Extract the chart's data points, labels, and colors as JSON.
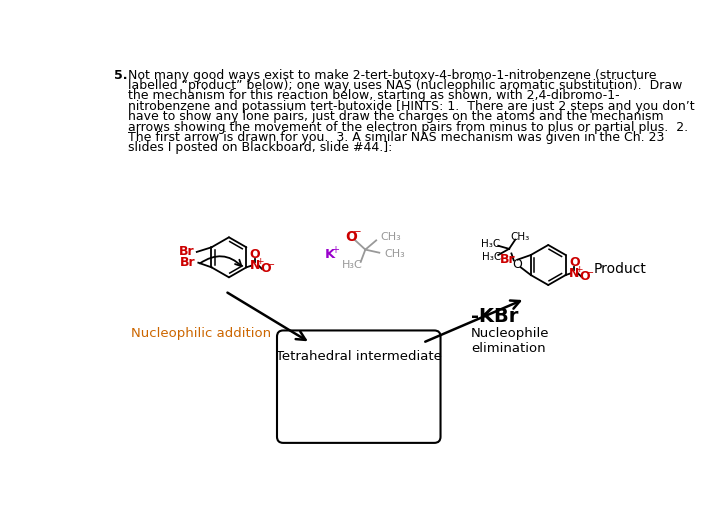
{
  "problem_text_lines": [
    "Not many good ways exist to make 2-tert-butoxy-4-bromo-1-nitrobenzene (structure",
    "labelled “product” below); one way uses NAS (nucleophilic aromatic substitution).  Draw",
    "the mechanism for this reaction below, starting as shown, with 2,4-dibromo-1-",
    "nitrobenzene and potassium tert-butoxide [HINTS: 1.  There are just 2 steps and you don’t",
    "have to show any lone pairs, just draw the charges on the atoms and the mechanism",
    "arrows showing the movement of the electron pairs from minus to plus or partial plus.  2.",
    "The first arrow is drawn for you.  3. A similar NAS mechanism was given in the Ch. 23",
    "slides I posted on Blackboard, slide #44.]:"
  ],
  "box_label": "Tetrahedral intermediate",
  "nucleophilic_addition_label": "Nucleophilic addition",
  "nucleophile_elimination_label": "Nucleophile\nelimination",
  "kbr_label": "-KBr",
  "product_label": "Product",
  "background_color": "#ffffff",
  "text_color": "#000000",
  "red_color": "#cc0000",
  "purple_color": "#9900cc",
  "gray_color": "#999999",
  "brown_color": "#cc6600"
}
